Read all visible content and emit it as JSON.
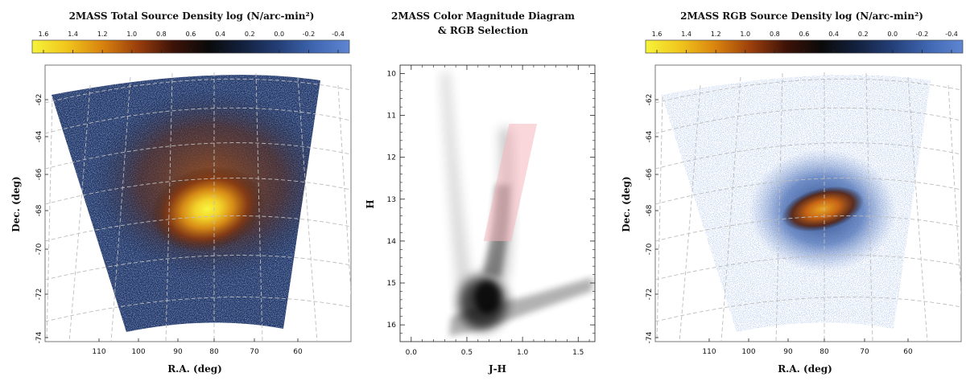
{
  "chart_data": [
    {
      "type": "heatmap",
      "title": "2MASS Total Source Density  log (N/arc-min²)",
      "colorbar": {
        "ticks": [
          "1.6",
          "1.4",
          "1.2",
          "1.0",
          "0.8",
          "0.6",
          "0.4",
          "0.2",
          "0.0",
          "-0.2",
          "-0.4"
        ],
        "stops": [
          "#f6f33a",
          "#f0c41c",
          "#d8820e",
          "#9a3e0c",
          "#3d1208",
          "#0a0a0a",
          "#13213f",
          "#243f78",
          "#3f66b0",
          "#5f86d2"
        ]
      },
      "xlabel": "R.A. (deg)",
      "ylabel": "Dec. (deg)",
      "x_ticks": [
        "110",
        "100",
        "90",
        "80",
        "70",
        "60"
      ],
      "y_ticks": [
        "-62",
        "-64",
        "-66",
        "-68",
        "-70",
        "-72",
        "-74"
      ],
      "ra_range": [
        100,
        63
      ],
      "dec_range": [
        -61,
        -74
      ],
      "peak": {
        "ra": 80,
        "dec": -68
      }
    },
    {
      "type": "scatter",
      "title": "2MASS Color Magnitude Diagram",
      "subtitle": "& RGB Selection",
      "xlabel": "J-H",
      "ylabel": "H",
      "x_ticks": [
        "0.0",
        "0.5",
        "1.0",
        "1.5"
      ],
      "y_ticks": [
        "10",
        "11",
        "12",
        "13",
        "14",
        "15",
        "16"
      ],
      "xlim": [
        -0.1,
        1.65
      ],
      "ylim": [
        16.4,
        9.8
      ],
      "rgb_selection": {
        "h_range": [
          11.2,
          14.0
        ],
        "jh_left": [
          0.88,
          0.65
        ],
        "jh_right": [
          1.13,
          0.9
        ]
      }
    },
    {
      "type": "heatmap",
      "title": "2MASS RGB Source Density  log (N/arc-min²)",
      "colorbar": {
        "ticks": [
          "1.6",
          "1.4",
          "1.2",
          "1.0",
          "0.8",
          "0.6",
          "0.4",
          "0.2",
          "0.0",
          "-0.2",
          "-0.4"
        ],
        "stops": [
          "#f6f33a",
          "#f0c41c",
          "#d8820e",
          "#9a3e0c",
          "#3d1208",
          "#0a0a0a",
          "#13213f",
          "#243f78",
          "#3f66b0",
          "#5f86d2"
        ]
      },
      "xlabel": "R.A. (deg)",
      "ylabel": "Dec. (deg)",
      "x_ticks": [
        "110",
        "100",
        "90",
        "80",
        "70",
        "60"
      ],
      "y_ticks": [
        "-62",
        "-64",
        "-66",
        "-68",
        "-70",
        "-72",
        "-74"
      ],
      "ra_range": [
        100,
        63
      ],
      "dec_range": [
        -61,
        -74
      ],
      "peak": {
        "ra": 80,
        "dec": -68
      }
    }
  ]
}
